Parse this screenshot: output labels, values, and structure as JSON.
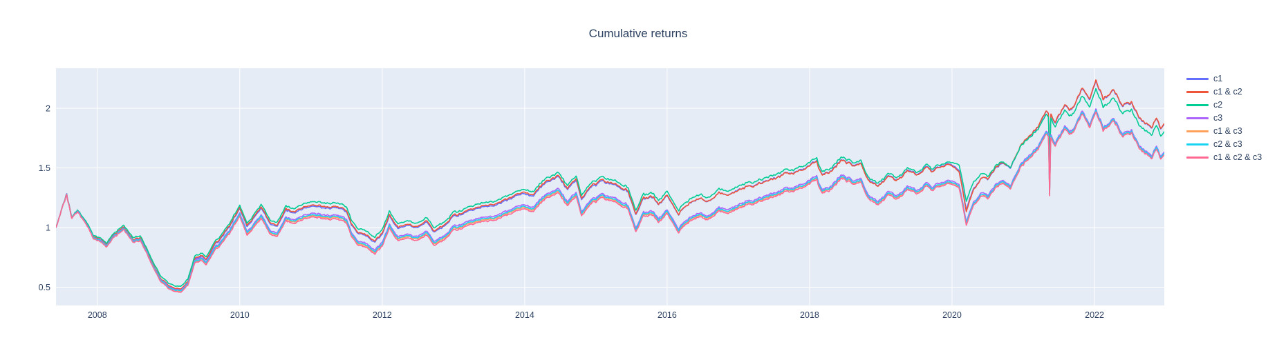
{
  "chart": {
    "title": "Cumulative returns",
    "font_color": "#2a3f5f",
    "plot_bgcolor": "#e5ecf6",
    "grid_color": "#ffffff",
    "tick_font_size": 12.5
  },
  "chart_data": {
    "type": "line",
    "title": "Cumulative returns",
    "xlabel": "",
    "ylabel": "",
    "legend_position": "right",
    "grid": true,
    "x_ticks": [
      {
        "label": "2008",
        "year": 2008
      },
      {
        "label": "2010",
        "year": 2010
      },
      {
        "label": "2012",
        "year": 2012
      },
      {
        "label": "2014",
        "year": 2014
      },
      {
        "label": "2016",
        "year": 2016
      },
      {
        "label": "2018",
        "year": 2018
      },
      {
        "label": "2020",
        "year": 2020
      },
      {
        "label": "2022",
        "year": 2022
      }
    ],
    "y_ticks": [
      {
        "label": "0.5",
        "value": 0.5
      },
      {
        "label": "1",
        "value": 1
      },
      {
        "label": "1.5",
        "value": 1.5
      },
      {
        "label": "2",
        "value": 2
      }
    ],
    "x_range": [
      2007.42,
      2022.98
    ],
    "y_range": [
      0.347,
      2.335
    ],
    "anchor_years": [
      2007.42,
      2007.5,
      2007.57,
      2007.64,
      2007.72,
      2007.85,
      2007.95,
      2008.05,
      2008.13,
      2008.25,
      2008.37,
      2008.5,
      2008.6,
      2008.7,
      2008.8,
      2008.9,
      2009.0,
      2009.08,
      2009.17,
      2009.27,
      2009.37,
      2009.45,
      2009.53,
      2009.65,
      2009.78,
      2009.9,
      2010.0,
      2010.1,
      2010.22,
      2010.3,
      2010.42,
      2010.53,
      2010.65,
      2010.78,
      2010.92,
      2011.05,
      2011.2,
      2011.35,
      2011.5,
      2011.57,
      2011.67,
      2011.8,
      2011.9,
      2012.0,
      2012.1,
      2012.22,
      2012.35,
      2012.5,
      2012.63,
      2012.73,
      2012.87,
      2013.0,
      2013.2,
      2013.4,
      2013.6,
      2013.8,
      2014.0,
      2014.1,
      2014.28,
      2014.46,
      2014.6,
      2014.72,
      2014.8,
      2014.95,
      2015.1,
      2015.28,
      2015.45,
      2015.56,
      2015.67,
      2015.8,
      2015.88,
      2016.0,
      2016.16,
      2016.32,
      2016.45,
      2016.57,
      2016.72,
      2016.87,
      2017.05,
      2017.3,
      2017.55,
      2017.8,
      2018.0,
      2018.1,
      2018.18,
      2018.32,
      2018.45,
      2018.6,
      2018.72,
      2018.82,
      2018.96,
      2019.1,
      2019.22,
      2019.37,
      2019.5,
      2019.63,
      2019.75,
      2019.97,
      2020.1,
      2020.2,
      2020.3,
      2020.4,
      2020.5,
      2020.62,
      2020.72,
      2020.82,
      2020.95,
      2021.08,
      2021.18,
      2021.25,
      2021.32,
      2021.355,
      2021.37,
      2021.385,
      2021.45,
      2021.58,
      2021.68,
      2021.83,
      2021.93,
      2022.02,
      2022.12,
      2022.25,
      2022.4,
      2022.52,
      2022.63,
      2022.73,
      2022.8,
      2022.87,
      2022.93,
      2022.98
    ],
    "base_series_name": "c1 & c2 & c3",
    "base_values": [
      1.0,
      1.14,
      1.28,
      1.07,
      1.14,
      1.02,
      0.9,
      0.88,
      0.83,
      0.93,
      0.99,
      0.87,
      0.89,
      0.78,
      0.65,
      0.54,
      0.49,
      0.465,
      0.455,
      0.52,
      0.7,
      0.73,
      0.69,
      0.81,
      0.89,
      1.0,
      1.095,
      0.93,
      1.01,
      1.07,
      0.945,
      0.93,
      1.05,
      1.04,
      1.07,
      1.085,
      1.065,
      1.08,
      1.04,
      0.92,
      0.85,
      0.83,
      0.775,
      0.84,
      0.99,
      0.88,
      0.91,
      0.89,
      0.945,
      0.85,
      0.89,
      0.975,
      1.02,
      1.05,
      1.065,
      1.12,
      1.17,
      1.13,
      1.23,
      1.3,
      1.19,
      1.26,
      1.105,
      1.21,
      1.24,
      1.21,
      1.15,
      0.97,
      1.1,
      1.095,
      1.04,
      1.11,
      0.96,
      1.06,
      1.095,
      1.07,
      1.13,
      1.12,
      1.17,
      1.225,
      1.27,
      1.315,
      1.36,
      1.4,
      1.28,
      1.33,
      1.42,
      1.36,
      1.38,
      1.25,
      1.18,
      1.28,
      1.24,
      1.31,
      1.29,
      1.34,
      1.32,
      1.365,
      1.33,
      1.02,
      1.18,
      1.26,
      1.24,
      1.33,
      1.36,
      1.33,
      1.5,
      1.57,
      1.63,
      1.7,
      1.78,
      1.76,
      1.27,
      1.76,
      1.68,
      1.83,
      1.77,
      1.94,
      1.85,
      1.96,
      1.8,
      1.89,
      1.76,
      1.8,
      1.68,
      1.62,
      1.57,
      1.65,
      1.59,
      1.62
    ],
    "series_note": "each series value(t) = base_values(t) + linearly interpolated offset_keyframes [year, offset]",
    "series": [
      {
        "name": "c1",
        "color": "#636efa",
        "offset_keyframes": [
          [
            2007.42,
            0.0
          ],
          [
            2008.0,
            0.015
          ],
          [
            2009.2,
            0.022
          ],
          [
            2009.9,
            0.06
          ],
          [
            2010.3,
            0.085
          ],
          [
            2011.0,
            0.09
          ],
          [
            2012.0,
            0.1
          ],
          [
            2013.0,
            0.115
          ],
          [
            2014.0,
            0.13
          ],
          [
            2015.0,
            0.14
          ],
          [
            2016.0,
            0.15
          ],
          [
            2017.0,
            0.155
          ],
          [
            2018.0,
            0.155
          ],
          [
            2019.0,
            0.16
          ],
          [
            2019.97,
            0.165
          ],
          [
            2020.2,
            0.13
          ],
          [
            2020.5,
            0.16
          ],
          [
            2021.0,
            0.18
          ],
          [
            2021.5,
            0.195
          ],
          [
            2021.83,
            0.21
          ],
          [
            2022.02,
            0.26
          ],
          [
            2022.5,
            0.255
          ],
          [
            2022.98,
            0.255
          ]
        ]
      },
      {
        "name": "c1 & c2",
        "color": "#ef553b",
        "offset_keyframes": [
          [
            2007.42,
            0.0
          ],
          [
            2008.0,
            0.02
          ],
          [
            2009.2,
            0.028
          ],
          [
            2009.9,
            0.068
          ],
          [
            2010.3,
            0.095
          ],
          [
            2011.0,
            0.1
          ],
          [
            2012.0,
            0.11
          ],
          [
            2013.0,
            0.125
          ],
          [
            2014.0,
            0.14
          ],
          [
            2015.0,
            0.15
          ],
          [
            2016.0,
            0.155
          ],
          [
            2017.0,
            0.152
          ],
          [
            2018.0,
            0.15
          ],
          [
            2019.0,
            0.155
          ],
          [
            2019.97,
            0.16
          ],
          [
            2020.2,
            0.115
          ],
          [
            2020.5,
            0.165
          ],
          [
            2021.0,
            0.185
          ],
          [
            2021.5,
            0.2
          ],
          [
            2021.83,
            0.215
          ],
          [
            2022.02,
            0.265
          ],
          [
            2022.5,
            0.26
          ],
          [
            2022.98,
            0.26
          ]
        ]
      },
      {
        "name": "c2",
        "color": "#00cc96",
        "offset_keyframes": [
          [
            2007.42,
            0.0
          ],
          [
            2008.0,
            0.03
          ],
          [
            2009.2,
            0.05
          ],
          [
            2009.9,
            0.085
          ],
          [
            2010.3,
            0.115
          ],
          [
            2011.0,
            0.13
          ],
          [
            2012.0,
            0.14
          ],
          [
            2013.0,
            0.15
          ],
          [
            2014.0,
            0.165
          ],
          [
            2015.0,
            0.175
          ],
          [
            2016.0,
            0.185
          ],
          [
            2017.0,
            0.185
          ],
          [
            2018.0,
            0.18
          ],
          [
            2019.0,
            0.18
          ],
          [
            2019.97,
            0.18
          ],
          [
            2020.2,
            0.2
          ],
          [
            2020.5,
            0.185
          ],
          [
            2021.0,
            0.175
          ],
          [
            2021.5,
            0.16
          ],
          [
            2021.83,
            0.15
          ],
          [
            2022.02,
            0.195
          ],
          [
            2022.5,
            0.195
          ],
          [
            2022.98,
            0.195
          ]
        ]
      },
      {
        "name": "c3",
        "color": "#ab63fa",
        "offset_keyframes": [
          [
            2007.42,
            0.0
          ],
          [
            2008.0,
            0.012
          ],
          [
            2009.2,
            0.018
          ],
          [
            2010.0,
            0.03
          ],
          [
            2012.0,
            0.033
          ],
          [
            2014.0,
            0.035
          ],
          [
            2016.0,
            0.032
          ],
          [
            2018.0,
            0.03
          ],
          [
            2020.0,
            0.028
          ],
          [
            2021.0,
            0.025
          ],
          [
            2022.98,
            0.022
          ]
        ]
      },
      {
        "name": "c1 & c3",
        "color": "#ffa15a",
        "offset_keyframes": [
          [
            2007.42,
            0.0
          ],
          [
            2008.0,
            0.005
          ],
          [
            2009.2,
            0.008
          ],
          [
            2010.0,
            0.011
          ],
          [
            2014.0,
            0.013
          ],
          [
            2018.0,
            0.011
          ],
          [
            2022.98,
            0.008
          ]
        ]
      },
      {
        "name": "c2 & c3",
        "color": "#19d3f3",
        "offset_keyframes": [
          [
            2007.42,
            0.0
          ],
          [
            2008.0,
            0.008
          ],
          [
            2009.2,
            0.012
          ],
          [
            2010.0,
            0.019
          ],
          [
            2014.0,
            0.022
          ],
          [
            2018.0,
            0.017
          ],
          [
            2022.98,
            0.013
          ]
        ]
      },
      {
        "name": "c1 & c2 & c3",
        "color": "#ff6692",
        "offset_keyframes": [
          [
            2007.42,
            0.0
          ],
          [
            2022.98,
            0.0
          ]
        ]
      }
    ]
  }
}
